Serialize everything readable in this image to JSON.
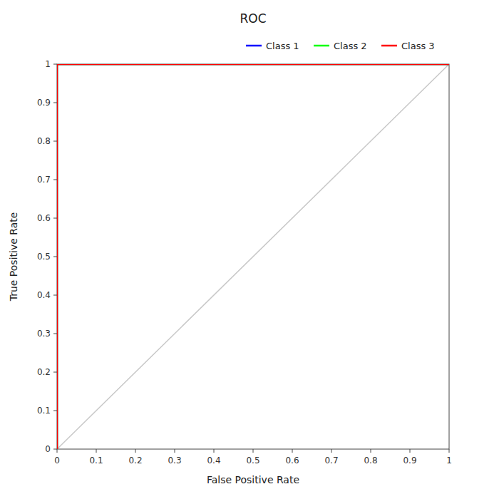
{
  "chart_data": {
    "type": "line",
    "title": "ROC",
    "xlabel": "False Positive Rate",
    "ylabel": "True Positive Rate",
    "series": [
      {
        "color": "#c8c8c8",
        "x": [
          0,
          1
        ],
        "values": [
          0,
          1
        ]
      },
      {
        "name": "Class 1",
        "color": "#0000ff",
        "x": [
          0,
          0,
          1
        ],
        "values": [
          0,
          1,
          1
        ]
      },
      {
        "name": "Class 2",
        "color": "#00ff00",
        "x": [
          0,
          0,
          1
        ],
        "values": [
          0,
          1,
          1
        ]
      },
      {
        "name": "Class 3",
        "color": "#ff0000",
        "x": [
          0,
          0,
          1
        ],
        "values": [
          0,
          1,
          1
        ]
      }
    ],
    "xlim": [
      0,
      1
    ],
    "ylim": [
      0,
      1
    ],
    "xticks": [
      0,
      0.1,
      0.2,
      0.3,
      0.4,
      0.5,
      0.6,
      0.7,
      0.8,
      0.9,
      1
    ],
    "yticks": [
      0,
      0.1,
      0.2,
      0.3,
      0.4,
      0.5,
      0.6,
      0.7,
      0.8,
      0.9,
      1
    ],
    "legend": "upper right",
    "grid": false
  }
}
